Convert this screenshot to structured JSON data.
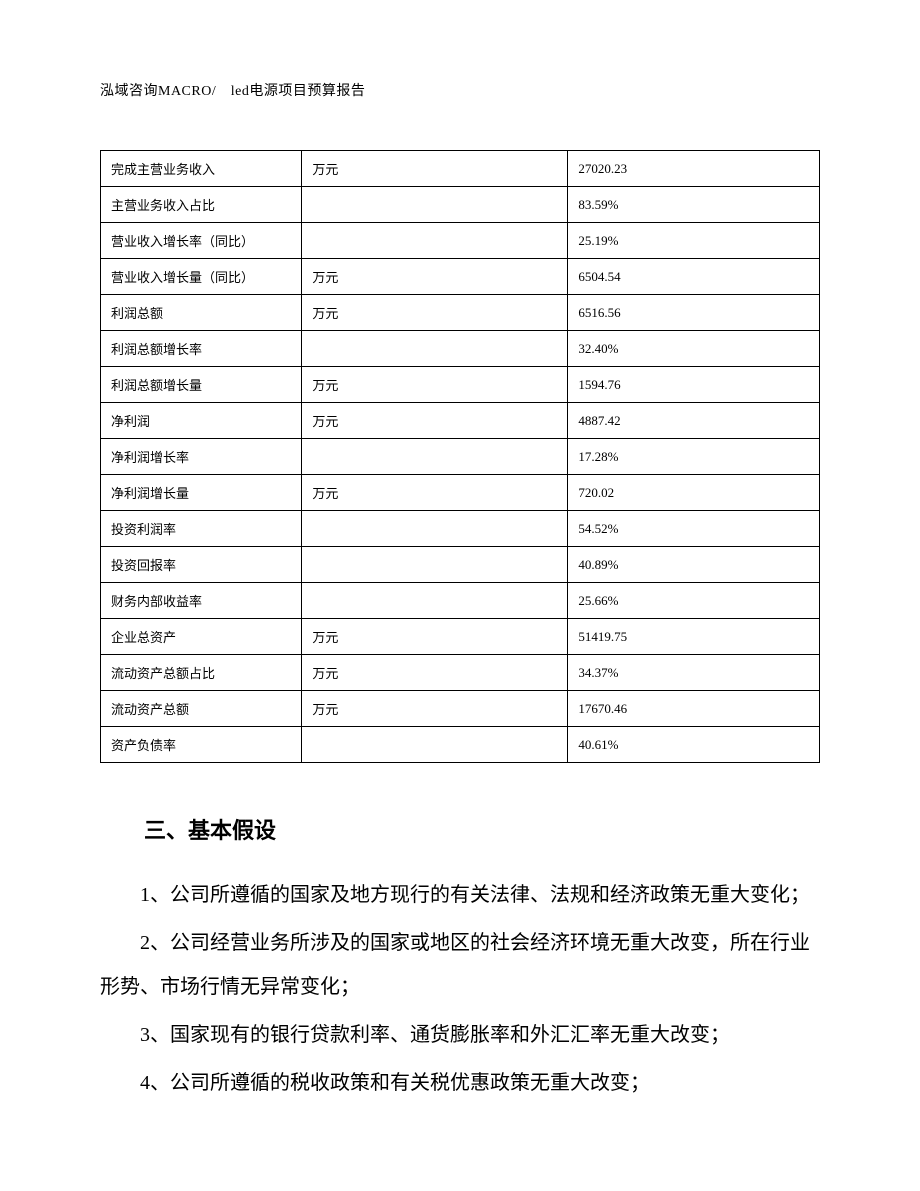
{
  "header": "泓域咨询MACRO/　led电源项目预算报告",
  "table": {
    "rows": [
      {
        "label": "完成主营业务收入",
        "unit": "万元",
        "value": "27020.23"
      },
      {
        "label": "主营业务收入占比",
        "unit": "",
        "value": "83.59%"
      },
      {
        "label": "营业收入增长率（同比）",
        "unit": "",
        "value": "25.19%"
      },
      {
        "label": "营业收入增长量（同比）",
        "unit": "万元",
        "value": "6504.54"
      },
      {
        "label": "利润总额",
        "unit": "万元",
        "value": "6516.56"
      },
      {
        "label": "利润总额增长率",
        "unit": "",
        "value": "32.40%"
      },
      {
        "label": "利润总额增长量",
        "unit": "万元",
        "value": "1594.76"
      },
      {
        "label": "净利润",
        "unit": "万元",
        "value": "4887.42"
      },
      {
        "label": "净利润增长率",
        "unit": "",
        "value": "17.28%"
      },
      {
        "label": "净利润增长量",
        "unit": "万元",
        "value": "720.02"
      },
      {
        "label": "投资利润率",
        "unit": "",
        "value": "54.52%"
      },
      {
        "label": "投资回报率",
        "unit": "",
        "value": "40.89%"
      },
      {
        "label": "财务内部收益率",
        "unit": "",
        "value": "25.66%"
      },
      {
        "label": "企业总资产",
        "unit": "万元",
        "value": "51419.75"
      },
      {
        "label": "流动资产总额占比",
        "unit": "万元",
        "value": "34.37%"
      },
      {
        "label": "流动资产总额",
        "unit": "万元",
        "value": "17670.46"
      },
      {
        "label": "资产负债率",
        "unit": "",
        "value": "40.61%"
      }
    ]
  },
  "section": {
    "title": "三、基本假设",
    "paragraphs": [
      "1、公司所遵循的国家及地方现行的有关法律、法规和经济政策无重大变化；",
      "2、公司经营业务所涉及的国家或地区的社会经济环境无重大改变，所在行业形势、市场行情无异常变化；",
      "3、国家现有的银行贷款利率、通货膨胀率和外汇汇率无重大改变；",
      "4、公司所遵循的税收政策和有关税优惠政策无重大改变；"
    ]
  }
}
